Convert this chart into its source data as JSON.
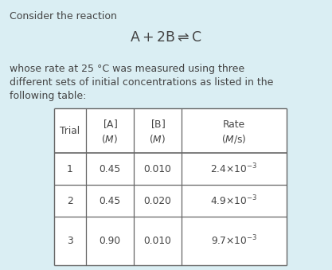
{
  "background_color": "#daeef3",
  "text_color": "#444444",
  "title_line1": "Consider the reaction",
  "body_text1": "whose rate at 25 °C was measured using three",
  "body_text2": "different sets of initial concentrations as listed in the",
  "body_text3": "following table:",
  "trials": [
    1,
    2,
    3
  ],
  "A_vals": [
    "0.45",
    "0.45",
    "0.90"
  ],
  "B_vals": [
    "0.010",
    "0.020",
    "0.010"
  ],
  "table_border_color": "#666666",
  "font_size_body": 9.0,
  "font_size_equation": 12.5,
  "font_size_table": 8.8
}
